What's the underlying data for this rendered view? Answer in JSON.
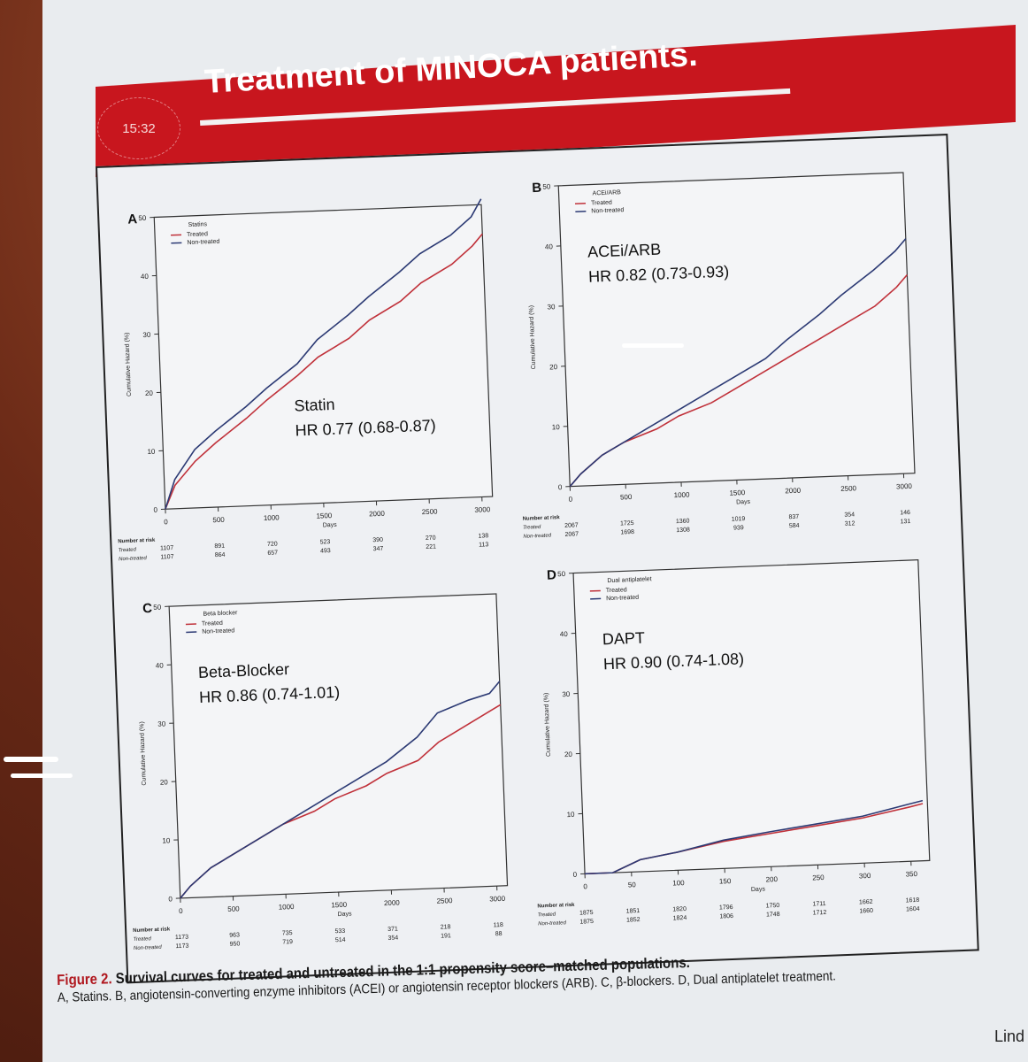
{
  "header": {
    "clock": "15:32",
    "title": "Treatment of MINOCA patients."
  },
  "footer": {
    "caption_label": "Figure 2.",
    "caption_title": "Survival curves for treated and untreated in the 1:1 propensity score–matched populations.",
    "caption_text": "A, Statins. B, angiotensin-converting enzyme inhibitors (ACEI) or angiotensin receptor blockers (ARB). C, β-blockers. D, Dual antiplatelet treatment.",
    "author": "Lind"
  },
  "colors": {
    "treated": "#c0313a",
    "non_treated": "#2c3a74"
  },
  "chart_data": [
    {
      "type": "line",
      "panel": "A",
      "legend_title": "Statins",
      "annotation": "Statin",
      "hr": "HR 0.77 (0.68-0.87)",
      "xlabel": "Days",
      "ylabel": "Cumulative Hazard (%)",
      "xlim": [
        0,
        3100
      ],
      "ylim": [
        0,
        50
      ],
      "xticks": [
        0,
        500,
        1000,
        1500,
        2000,
        2500,
        3000
      ],
      "yticks": [
        0,
        10,
        20,
        30,
        40,
        50
      ],
      "series": [
        {
          "name": "Treated",
          "x": [
            0,
            100,
            300,
            500,
            800,
            1000,
            1300,
            1500,
            1800,
            2000,
            2300,
            2500,
            2800,
            3000,
            3100
          ],
          "y": [
            0,
            4,
            8,
            11,
            15,
            18,
            22,
            25,
            28,
            31,
            34,
            37,
            40,
            43,
            45
          ]
        },
        {
          "name": "Non-treated",
          "x": [
            0,
            100,
            300,
            500,
            800,
            1000,
            1300,
            1500,
            1800,
            2000,
            2300,
            2500,
            2800,
            3000,
            3100
          ],
          "y": [
            0,
            5,
            10,
            13,
            17,
            20,
            24,
            28,
            32,
            35,
            39,
            42,
            45,
            48,
            51
          ]
        }
      ],
      "risk_header": "Number at risk",
      "risk_table": [
        {
          "label": "Treated",
          "values": [
            "1107",
            "891",
            "720",
            "523",
            "390",
            "270",
            "138"
          ]
        },
        {
          "label": "Non-treated",
          "values": [
            "1107",
            "864",
            "657",
            "493",
            "347",
            "221",
            "113"
          ]
        }
      ]
    },
    {
      "type": "line",
      "panel": "B",
      "legend_title": "ACEi/ARB",
      "annotation": "ACEi/ARB",
      "hr": "HR 0.82 (0.73-0.93)",
      "xlabel": "Days",
      "ylabel": "Cumulative Hazard (%)",
      "xlim": [
        0,
        3100
      ],
      "ylim": [
        0,
        50
      ],
      "xticks": [
        0,
        500,
        1000,
        1500,
        2000,
        2500,
        3000
      ],
      "yticks": [
        0,
        10,
        20,
        30,
        40,
        50
      ],
      "series": [
        {
          "name": "Treated",
          "x": [
            0,
            100,
            300,
            500,
            800,
            1000,
            1300,
            1500,
            1800,
            2000,
            2300,
            2500,
            2800,
            3000,
            3100
          ],
          "y": [
            0,
            2,
            5,
            7,
            9,
            11,
            13,
            15,
            18,
            20,
            23,
            25,
            28,
            31,
            33
          ]
        },
        {
          "name": "Non-treated",
          "x": [
            0,
            100,
            300,
            500,
            800,
            1000,
            1300,
            1500,
            1800,
            2000,
            2300,
            2500,
            2800,
            3000,
            3100
          ],
          "y": [
            0,
            2,
            5,
            7,
            10,
            12,
            15,
            17,
            20,
            23,
            27,
            30,
            34,
            37,
            39
          ]
        }
      ],
      "risk_header": "Number at risk",
      "risk_table": [
        {
          "label": "Treated",
          "values": [
            "2067",
            "1725",
            "1360",
            "1019",
            "837",
            "354",
            "146"
          ]
        },
        {
          "label": "Non-treated",
          "values": [
            "2067",
            "1698",
            "1308",
            "939",
            "584",
            "312",
            "131"
          ]
        }
      ]
    },
    {
      "type": "line",
      "panel": "C",
      "legend_title": "Beta blocker",
      "annotation": "Beta-Blocker",
      "hr": "HR 0.86 (0.74-1.01)",
      "xlabel": "Days",
      "ylabel": "Cumulative Hazard (%)",
      "xlim": [
        0,
        3100
      ],
      "ylim": [
        0,
        50
      ],
      "xticks": [
        0,
        500,
        1000,
        1500,
        2000,
        2500,
        3000
      ],
      "yticks": [
        0,
        10,
        20,
        30,
        40,
        50
      ],
      "series": [
        {
          "name": "Treated",
          "x": [
            0,
            100,
            300,
            500,
            800,
            1000,
            1300,
            1500,
            1800,
            2000,
            2300,
            2500,
            2800,
            3000,
            3100
          ],
          "y": [
            0,
            2,
            5,
            7,
            10,
            12,
            14,
            16,
            18,
            20,
            22,
            25,
            28,
            30,
            31
          ]
        },
        {
          "name": "Non-treated",
          "x": [
            0,
            100,
            300,
            500,
            800,
            1000,
            1300,
            1500,
            1800,
            2000,
            2300,
            2500,
            2800,
            3000,
            3100
          ],
          "y": [
            0,
            2,
            5,
            7,
            10,
            12,
            15,
            17,
            20,
            22,
            26,
            30,
            32,
            33,
            35
          ]
        }
      ],
      "risk_header": "Number at risk",
      "risk_table": [
        {
          "label": "Treated",
          "values": [
            "1173",
            "963",
            "735",
            "533",
            "371",
            "218",
            "118"
          ]
        },
        {
          "label": "Non-treated",
          "values": [
            "1173",
            "950",
            "719",
            "514",
            "354",
            "191",
            "88"
          ]
        }
      ]
    },
    {
      "type": "line",
      "panel": "D",
      "legend_title": "Dual antiplatelet",
      "annotation": "DAPT",
      "hr": "HR 0.90 (0.74-1.08)",
      "xlabel": "Days",
      "ylabel": "Cumulative Hazard (%)",
      "xlim": [
        0,
        370
      ],
      "ylim": [
        0,
        50
      ],
      "xticks": [
        0,
        50,
        100,
        150,
        200,
        250,
        300,
        350
      ],
      "yticks": [
        0,
        10,
        20,
        30,
        40,
        50
      ],
      "series": [
        {
          "name": "Treated",
          "x": [
            0,
            30,
            45,
            60,
            100,
            150,
            200,
            250,
            300,
            350,
            365
          ],
          "y": [
            0,
            0,
            1,
            2,
            3,
            4.5,
            5.5,
            6.5,
            7.5,
            9,
            9.5
          ]
        },
        {
          "name": "Non-treated",
          "x": [
            0,
            30,
            45,
            60,
            100,
            150,
            200,
            250,
            300,
            350,
            365
          ],
          "y": [
            0,
            0,
            1,
            2,
            3,
            4.7,
            5.8,
            6.8,
            7.8,
            9.5,
            10
          ]
        }
      ],
      "risk_header": "Number at risk",
      "risk_table": [
        {
          "label": "Treated",
          "values": [
            "1875",
            "1851",
            "1820",
            "1796",
            "1750",
            "1711",
            "1662",
            "1618"
          ]
        },
        {
          "label": "Non-treated",
          "values": [
            "1875",
            "1852",
            "1824",
            "1806",
            "1748",
            "1712",
            "1660",
            "1604"
          ]
        }
      ]
    }
  ]
}
